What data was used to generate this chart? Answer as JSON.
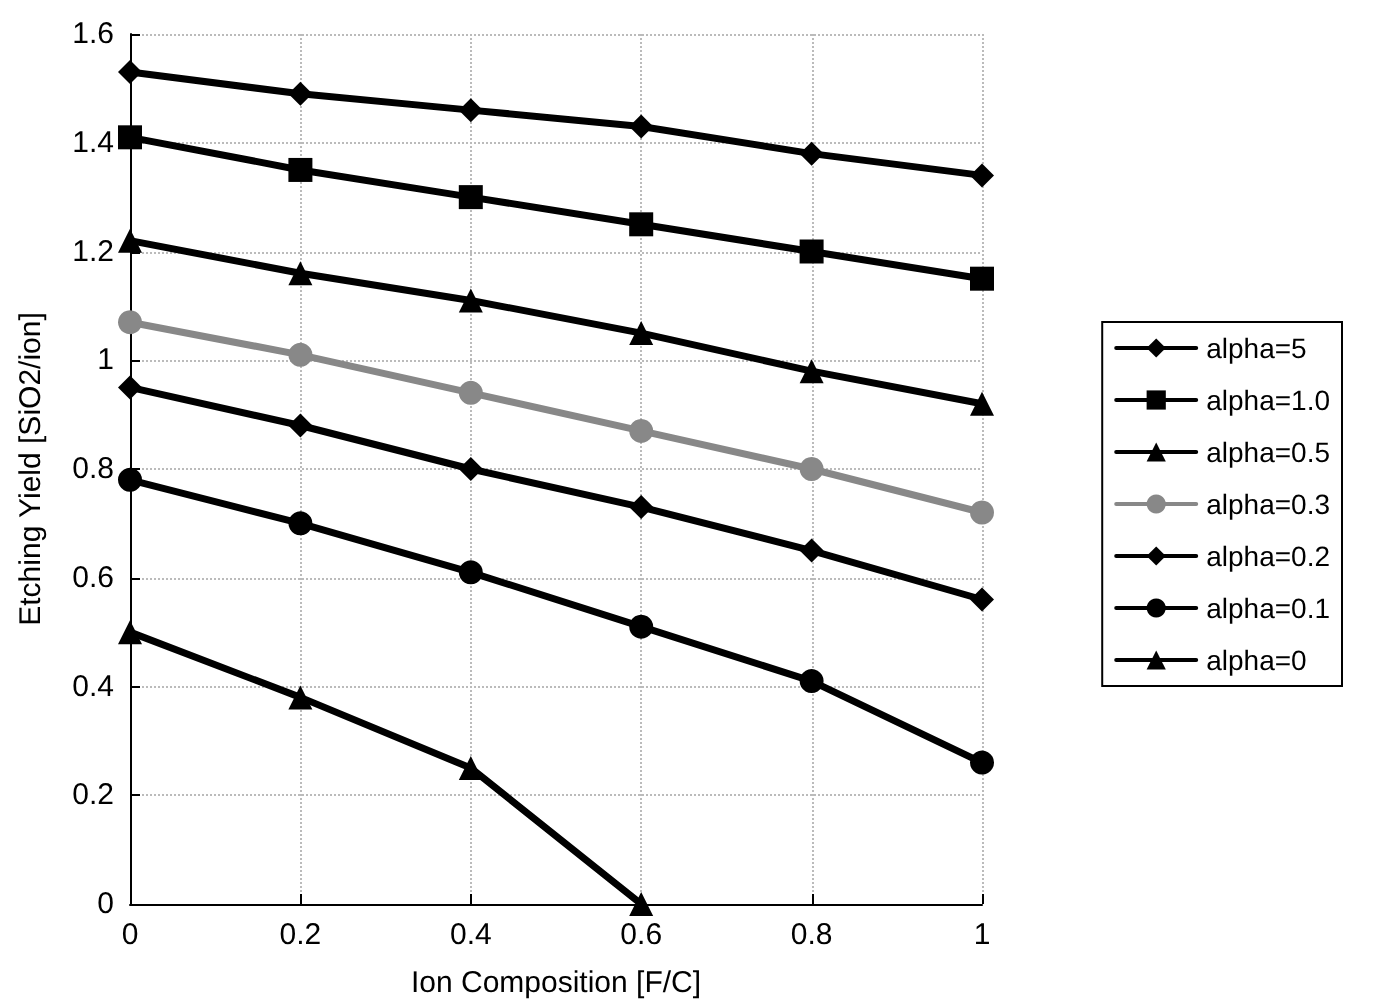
{
  "chart_data": {
    "type": "line",
    "xlabel": "Ion Composition [F/C]",
    "ylabel": "Etching Yield [SiO2/ion]",
    "x": [
      0,
      0.2,
      0.4,
      0.6,
      0.8,
      1
    ],
    "series": [
      {
        "name": "alpha=5",
        "color": "#000000",
        "marker": "diamond",
        "values": [
          1.53,
          1.49,
          1.46,
          1.43,
          1.38,
          1.34
        ]
      },
      {
        "name": "alpha=1.0",
        "color": "#000000",
        "marker": "square",
        "values": [
          1.41,
          1.35,
          1.3,
          1.25,
          1.2,
          1.15
        ]
      },
      {
        "name": "alpha=0.5",
        "color": "#000000",
        "marker": "triangle",
        "values": [
          1.22,
          1.16,
          1.11,
          1.05,
          0.98,
          0.92
        ]
      },
      {
        "name": "alpha=0.3",
        "color": "#888888",
        "marker": "circle",
        "values": [
          1.07,
          1.01,
          0.94,
          0.87,
          0.8,
          0.72
        ]
      },
      {
        "name": "alpha=0.2",
        "color": "#000000",
        "marker": "diamond",
        "values": [
          0.95,
          0.88,
          0.8,
          0.73,
          0.65,
          0.56
        ]
      },
      {
        "name": "alpha=0.1",
        "color": "#000000",
        "marker": "circle",
        "values": [
          0.78,
          0.7,
          0.61,
          0.51,
          0.41,
          0.26
        ]
      },
      {
        "name": "alpha=0",
        "color": "#000000",
        "marker": "triangle",
        "values": [
          0.5,
          0.38,
          0.25,
          0,
          null,
          null
        ]
      }
    ],
    "xlim": [
      0,
      1
    ],
    "xticks": [
      0,
      0.2,
      0.4,
      0.6,
      0.8,
      1
    ],
    "ylim": [
      0,
      1.6
    ],
    "yticks": [
      0,
      0.2,
      0.4,
      0.6,
      0.8,
      1,
      1.2,
      1.4,
      1.6
    ],
    "grid": true,
    "legend": "right"
  }
}
